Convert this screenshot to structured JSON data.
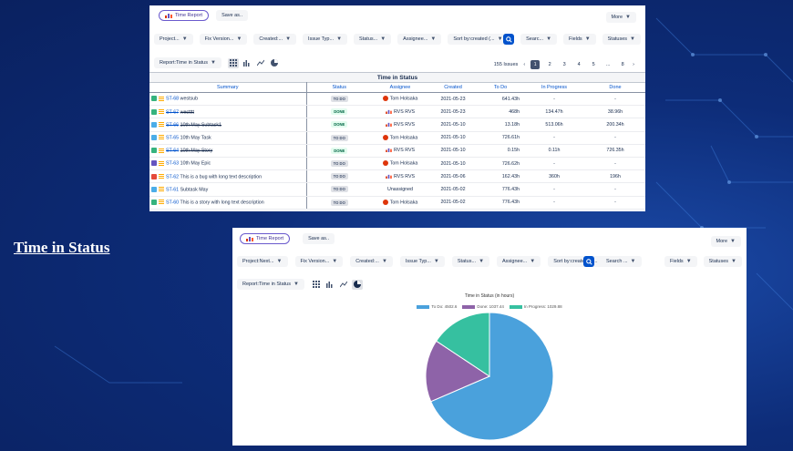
{
  "slide_title": "Time in Status",
  "colors": {
    "todo": "#4aa1dc",
    "done": "#8e63a8",
    "in_progress": "#36c0a0",
    "primary": "#0052cc"
  },
  "panel1": {
    "time_report_label": "Time Report",
    "save_as_label": "Save as..",
    "more_label": "More",
    "filters": [
      "Project...",
      "Fix Version...",
      "Created:...",
      "Issue Typ...",
      "Status...",
      "Assignee...",
      "Sort by:created (..."
    ],
    "search_label": "Searc...",
    "fields_label": "Fields",
    "statuses_label": "Statuses",
    "report_label": "Report:Time in Status",
    "issues_count": "155 Issues",
    "pages": [
      "1",
      "2",
      "3",
      "4",
      "5",
      "...",
      "8"
    ],
    "table_title": "Time in Status",
    "columns": [
      "Summary",
      "Status",
      "Assignee",
      "Created",
      "To Do",
      "In Progress",
      "Done"
    ],
    "rows": [
      {
        "type": "story",
        "key": "ST-68",
        "summary": "westsub",
        "strike": false,
        "status": "TO DO",
        "assignee": "Tom Holsaka",
        "created": "2021-05-23",
        "todo": "641.43h",
        "inprogress": "-",
        "done": "-"
      },
      {
        "type": "story",
        "key": "ST-67",
        "summary": "westttt",
        "strike": true,
        "status": "DONE",
        "assignee": "RVS RVS",
        "created": "2021-05-23",
        "todo": "468h",
        "inprogress": "134.47h",
        "done": "38.96h"
      },
      {
        "type": "task",
        "key": "ST-66",
        "summary": "10th May Subtask1",
        "strike": true,
        "status": "DONE",
        "assignee": "RVS RVS",
        "created": "2021-05-10",
        "todo": "13.18h",
        "inprogress": "513.06h",
        "done": "200.34h"
      },
      {
        "type": "task",
        "key": "ST-65",
        "summary": "10th May Task",
        "strike": false,
        "status": "TO DO",
        "assignee": "Tom Holsaka",
        "created": "2021-05-10",
        "todo": "726.61h",
        "inprogress": "-",
        "done": "-"
      },
      {
        "type": "story",
        "key": "ST-64",
        "summary": "10th May Story",
        "strike": true,
        "status": "DONE",
        "assignee": "RVS RVS",
        "created": "2021-05-10",
        "todo": "0.15h",
        "inprogress": "0.11h",
        "done": "726.35h"
      },
      {
        "type": "epic",
        "key": "ST-63",
        "summary": "10th May Epic",
        "strike": false,
        "status": "TO DO",
        "assignee": "Tom Holsaka",
        "created": "2021-05-10",
        "todo": "726.62h",
        "inprogress": "-",
        "done": "-"
      },
      {
        "type": "bug",
        "key": "ST-62",
        "summary": "This is a bug with long text description",
        "strike": false,
        "status": "TO DO",
        "assignee": "RVS RVS",
        "created": "2021-05-06",
        "todo": "162.43h",
        "inprogress": "360h",
        "done": "196h"
      },
      {
        "type": "task",
        "key": "ST-61",
        "summary": "Subtask May",
        "strike": false,
        "status": "TO DO",
        "assignee": "Unassigned",
        "created": "2021-05-02",
        "todo": "776.43h",
        "inprogress": "-",
        "done": "-"
      },
      {
        "type": "story",
        "key": "ST-60",
        "summary": "This is a story with long text description",
        "strike": false,
        "status": "TO DO",
        "assignee": "Tom Holsaka",
        "created": "2021-05-02",
        "todo": "776.43h",
        "inprogress": "-",
        "done": "-"
      }
    ]
  },
  "panel2": {
    "time_report_label": "Time Report",
    "save_as_label": "Save as..",
    "more_label": "More",
    "filters": [
      "Project:Next...",
      "Fix Version...",
      "Created:...",
      "Issue Typ...",
      "Status...",
      "Assignee...",
      "Sort by:created (d..."
    ],
    "search_label": "Search ...",
    "fields_label": "Fields",
    "statuses_label": "Statuses",
    "report_label": "Report:Time in Status"
  },
  "chart_data": {
    "type": "pie",
    "title": "Time in Status (in hours)",
    "categories": [
      "To Do",
      "Done",
      "In Progress"
    ],
    "values": [
      4502.6,
      1037.44,
      1029.88
    ],
    "legend_labels": [
      "To Do: 4502.6",
      "Done: 1037.44",
      "In Progress: 1029.88"
    ],
    "colors": [
      "#4aa1dc",
      "#8e63a8",
      "#36c0a0"
    ],
    "legend": "top"
  }
}
